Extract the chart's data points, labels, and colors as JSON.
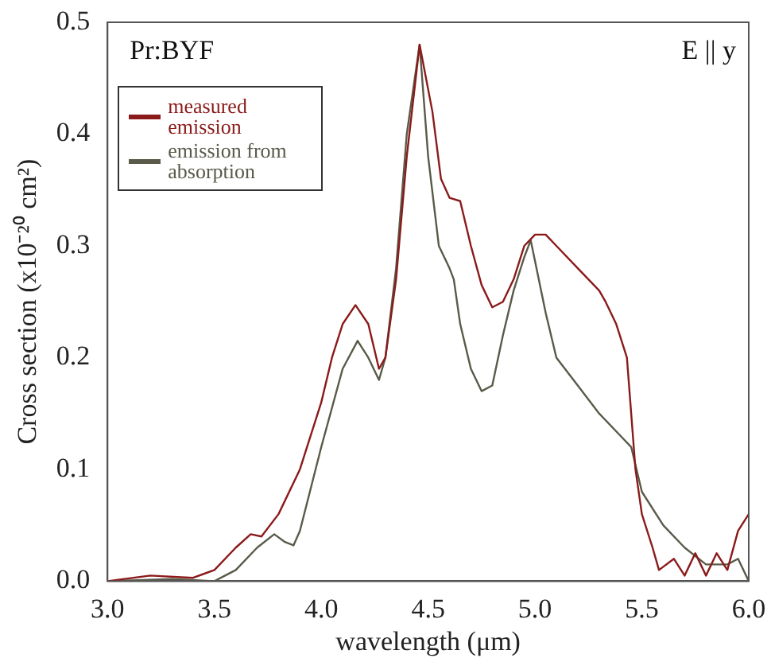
{
  "chart_data": {
    "type": "line",
    "xlabel": "wavelength (μm)",
    "ylabel": "Cross section (x10⁻²⁰ cm²)",
    "annotations": [
      "Pr:BYF",
      "E || y"
    ],
    "xlim": [
      3.0,
      6.0
    ],
    "xticks": [
      {
        "value": 3,
        "label": "3.0"
      },
      3.5,
      {
        "value": 4,
        "label": "4.0"
      },
      4.5,
      {
        "value": 5,
        "label": "5.0"
      },
      5.5,
      {
        "value": 6,
        "label": "6.0"
      }
    ],
    "ylim": [
      0,
      0.5
    ],
    "yticks": [
      {
        "value": 0,
        "label": "0.0"
      },
      0.1,
      0.2,
      0.3,
      0.4,
      0.5
    ],
    "grid": false,
    "legend": "top left",
    "marker": "none",
    "line_style": "solid",
    "series": [
      {
        "name": "measured emission",
        "color": "#8b1a1a",
        "x": [
          3.0,
          3.2,
          3.4,
          3.5,
          3.6,
          3.67,
          3.72,
          3.8,
          3.9,
          4.0,
          4.05,
          4.1,
          4.16,
          4.22,
          4.27,
          4.3,
          4.35,
          4.4,
          4.46,
          4.52,
          4.56,
          4.6,
          4.65,
          4.7,
          4.75,
          4.8,
          4.85,
          4.9,
          4.95,
          5.0,
          5.05,
          5.1,
          5.2,
          5.3,
          5.33,
          5.38,
          5.43,
          5.47,
          5.5,
          5.55,
          5.58,
          5.65,
          5.7,
          5.75,
          5.8,
          5.85,
          5.9,
          5.95,
          6.0
        ],
        "values": [
          0.0,
          0.005,
          0.003,
          0.01,
          0.03,
          0.042,
          0.04,
          0.06,
          0.1,
          0.16,
          0.2,
          0.23,
          0.247,
          0.23,
          0.19,
          0.2,
          0.27,
          0.38,
          0.48,
          0.42,
          0.36,
          0.343,
          0.34,
          0.3,
          0.265,
          0.245,
          0.25,
          0.27,
          0.3,
          0.31,
          0.31,
          0.3,
          0.28,
          0.26,
          0.25,
          0.23,
          0.2,
          0.1,
          0.06,
          0.03,
          0.01,
          0.02,
          0.005,
          0.025,
          0.005,
          0.025,
          0.01,
          0.045,
          0.06
        ]
      },
      {
        "name": "emission from absorption",
        "color": "#5a5a4a",
        "x": [
          3.0,
          3.3,
          3.5,
          3.6,
          3.7,
          3.78,
          3.83,
          3.87,
          3.9,
          4.0,
          4.1,
          4.17,
          4.22,
          4.27,
          4.3,
          4.35,
          4.4,
          4.46,
          4.5,
          4.55,
          4.6,
          4.62,
          4.65,
          4.7,
          4.75,
          4.8,
          4.85,
          4.9,
          4.95,
          4.98,
          5.05,
          5.1,
          5.2,
          5.3,
          5.4,
          5.45,
          5.5,
          5.6,
          5.7,
          5.8,
          5.9,
          5.95,
          6.0
        ],
        "values": [
          0.0,
          0.002,
          0.0,
          0.01,
          0.03,
          0.042,
          0.035,
          0.032,
          0.045,
          0.12,
          0.19,
          0.215,
          0.2,
          0.18,
          0.2,
          0.28,
          0.4,
          0.48,
          0.38,
          0.3,
          0.28,
          0.27,
          0.23,
          0.19,
          0.17,
          0.175,
          0.22,
          0.26,
          0.29,
          0.305,
          0.24,
          0.2,
          0.175,
          0.15,
          0.13,
          0.12,
          0.08,
          0.05,
          0.03,
          0.015,
          0.015,
          0.02,
          0.0
        ]
      }
    ]
  }
}
